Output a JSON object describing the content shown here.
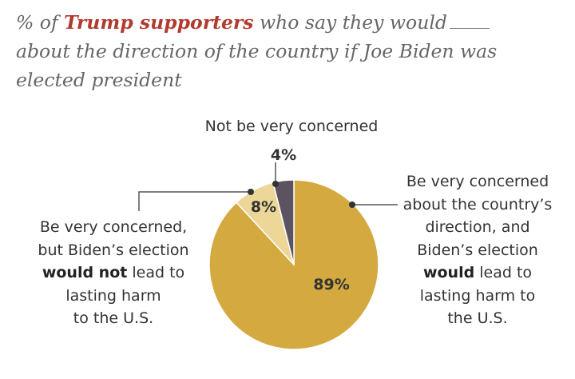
{
  "title": {
    "prefix": "% of",
    "highlight": "Trump supporters",
    "rest": "who say they would",
    "line2": "about the direction of the country if Joe Biden was",
    "line3": "elected president"
  },
  "labels": {
    "top": "Not be very concerned",
    "left": {
      "line1": "Be very concerned,",
      "line2": "but Biden’s election",
      "bold": "would not",
      "after_bold": "lead to",
      "line4": "lasting harm",
      "line5": "to the U.S."
    },
    "right": {
      "line1": "Be very concerned",
      "line2": "about the country’s",
      "line3": "direction, and",
      "line4": "Biden’s election",
      "bold": "would",
      "after_bold": "lead to",
      "line6": "lasting harm to",
      "line7": "the U.S."
    }
  },
  "chart_data": {
    "type": "pie",
    "title": "% of Trump supporters who say they would ____ about the direction of the country if Joe Biden was elected president",
    "slices": [
      {
        "label": "Be very concerned about the country’s direction, and Biden’s election would lead to lasting harm to the U.S.",
        "value": 89,
        "display": "89%",
        "color": "#d4a93f"
      },
      {
        "label": "Be very concerned, but Biden’s election would not lead to lasting harm to the U.S.",
        "value": 8,
        "display": "8%",
        "color": "#ecd698"
      },
      {
        "label": "Not be very concerned",
        "value": 4,
        "display": "4%",
        "color": "#5c5361"
      }
    ]
  }
}
